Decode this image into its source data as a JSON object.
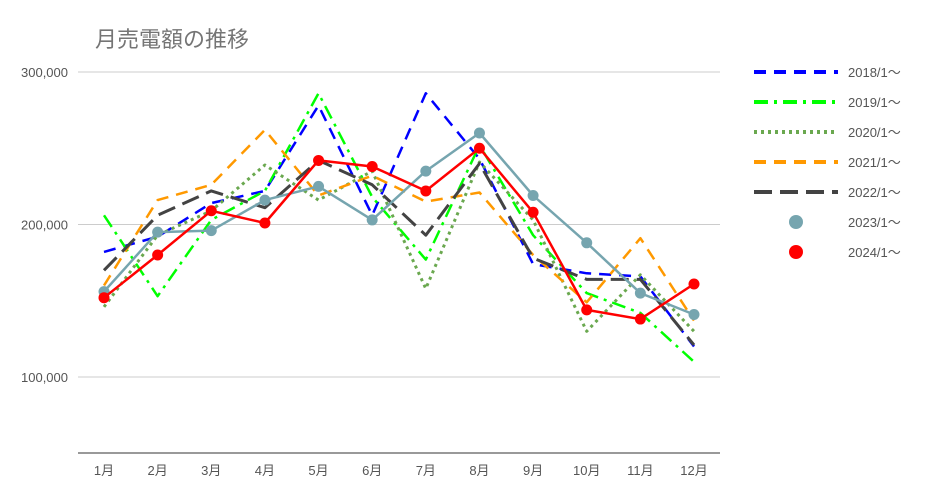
{
  "chart_data": {
    "type": "line",
    "title": "月売電額の推移",
    "categories": [
      "1月",
      "2月",
      "3月",
      "4月",
      "5月",
      "6月",
      "7月",
      "8月",
      "9月",
      "10月",
      "11月",
      "12月"
    ],
    "y_ticks": [
      "100,000",
      "200,000",
      "300,000"
    ],
    "y_tick_values": [
      100000,
      200000,
      300000
    ],
    "ylim": [
      50000,
      300000
    ],
    "grid": true,
    "legend_position": "right",
    "series": [
      {
        "name": "2018/1〜",
        "color": "#0000ff",
        "style": "dashed",
        "values": [
          182000,
          192000,
          214000,
          222000,
          278000,
          206000,
          286000,
          243000,
          174000,
          168000,
          166000,
          120000
        ]
      },
      {
        "name": "2019/1〜",
        "color": "#00ff00",
        "style": "dash-dot",
        "values": [
          206000,
          153000,
          203000,
          222000,
          286000,
          218000,
          177000,
          252000,
          193000,
          155000,
          142000,
          110000
        ]
      },
      {
        "name": "2020/1〜",
        "color": "#6aa84f",
        "style": "dotted",
        "values": [
          146000,
          193000,
          209000,
          239000,
          216000,
          235000,
          158000,
          241000,
          203000,
          130000,
          167000,
          130000
        ]
      },
      {
        "name": "2021/1〜",
        "color": "#ff9900",
        "style": "long-dashed",
        "values": [
          160000,
          216000,
          226000,
          262000,
          219000,
          232000,
          215000,
          221000,
          180000,
          149000,
          191000,
          137000
        ]
      },
      {
        "name": "2022/1〜",
        "color": "#434343",
        "style": "long-dash-bold",
        "values": [
          170000,
          206000,
          222000,
          211000,
          242000,
          226000,
          193000,
          240000,
          178000,
          164000,
          164000,
          121000
        ]
      },
      {
        "name": "2023/1〜",
        "color": "#76a5af",
        "style": "solid-markers",
        "values": [
          156000,
          195000,
          196000,
          216000,
          225000,
          203000,
          235000,
          260000,
          219000,
          188000,
          155000,
          141000
        ]
      },
      {
        "name": "2024/1〜",
        "color": "#ff0000",
        "style": "solid-markers",
        "values": [
          152000,
          180000,
          209000,
          201000,
          242000,
          238000,
          222000,
          250000,
          208000,
          144000,
          138000,
          161000
        ]
      }
    ]
  }
}
